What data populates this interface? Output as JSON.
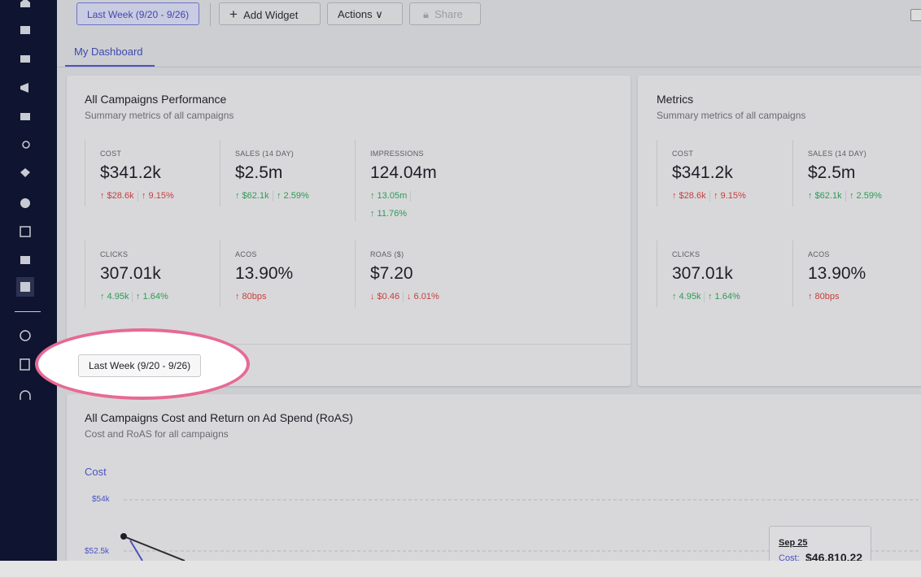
{
  "toolbar": {
    "date_button": "Last Week (9/20 - 9/26)",
    "add_widget": "Add Widget",
    "actions": "Actions",
    "share": "Share"
  },
  "tabs": [
    "My Dashboard"
  ],
  "cards": [
    {
      "title": "All Campaigns Performance",
      "subtitle": "Summary metrics of all campaigns",
      "columns": 3,
      "metrics": [
        {
          "label": "COST",
          "value": "$341.2k",
          "changes": [
            {
              "text": "↑ $28.6k",
              "tone": "red"
            },
            {
              "text": "↑ 9.15%",
              "tone": "red"
            }
          ]
        },
        {
          "label": "SALES (14 DAY)",
          "value": "$2.5m",
          "changes": [
            {
              "text": "↑ $62.1k",
              "tone": "green"
            },
            {
              "text": "↑ 2.59%",
              "tone": "green"
            }
          ]
        },
        {
          "label": "IMPRESSIONS",
          "value": "124.04m",
          "changes": [
            {
              "text": "↑ 13.05m",
              "tone": "green"
            },
            {
              "text": "↑ 11.76%",
              "tone": "green"
            }
          ],
          "wrap": true
        },
        {
          "label": "CLICKS",
          "value": "307.01k",
          "changes": [
            {
              "text": "↑ 4.95k",
              "tone": "green"
            },
            {
              "text": "↑ 1.64%",
              "tone": "green"
            }
          ]
        },
        {
          "label": "ACOS",
          "value": "13.90%",
          "changes": [
            {
              "text": "↑ 80bps",
              "tone": "red"
            }
          ]
        },
        {
          "label": "ROAS ($)",
          "value": "$7.20",
          "changes": [
            {
              "text": "↓ $0.46",
              "tone": "red"
            },
            {
              "text": "↓ 6.01%",
              "tone": "red"
            }
          ]
        }
      ],
      "footer_button": "Last Week (9/20 - 9/26)"
    },
    {
      "title": "Metrics",
      "subtitle": "Summary metrics of all campaigns",
      "columns": 2,
      "metrics": [
        {
          "label": "COST",
          "value": "$341.2k",
          "changes": [
            {
              "text": "↑ $28.6k",
              "tone": "red"
            },
            {
              "text": "↑ 9.15%",
              "tone": "red"
            }
          ]
        },
        {
          "label": "SALES (14 DAY)",
          "value": "$2.5m",
          "changes": [
            {
              "text": "↑ $62.1k",
              "tone": "green"
            },
            {
              "text": "↑ 2.59%",
              "tone": "green"
            }
          ]
        },
        {
          "label": "CLICKS",
          "value": "307.01k",
          "changes": [
            {
              "text": "↑ 4.95k",
              "tone": "green"
            },
            {
              "text": "↑ 1.64%",
              "tone": "green"
            }
          ]
        },
        {
          "label": "ACOS",
          "value": "13.90%",
          "changes": [
            {
              "text": "↑ 80bps",
              "tone": "red"
            }
          ]
        }
      ]
    }
  ],
  "chart_card": {
    "title": "All Campaigns Cost and Return on Ad Spend (RoAS)",
    "subtitle": "Cost and RoAS for all campaigns",
    "axis_title": "Cost",
    "yticks": [
      "$54k",
      "$52.5k"
    ],
    "tooltip": {
      "date": "Sep 25",
      "label": "Cost:",
      "value": "$46,810.22"
    }
  }
}
